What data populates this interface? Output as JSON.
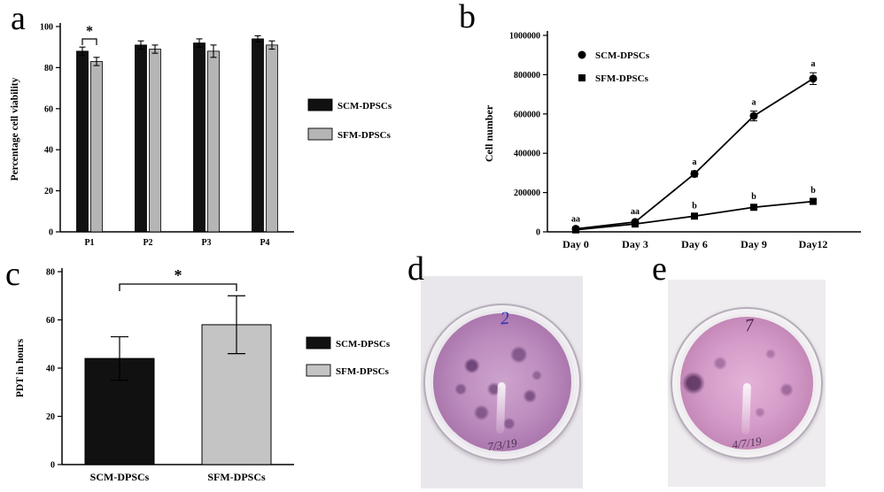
{
  "panels": {
    "a": {
      "label": "a"
    },
    "b": {
      "label": "b"
    },
    "c": {
      "label": "c"
    },
    "d": {
      "label": "d"
    },
    "e": {
      "label": "e"
    }
  },
  "colors": {
    "scm": "#111111",
    "sfm_a": "#b5b5b5",
    "sfm_c": "#c4c4c4"
  },
  "chart_data": [
    {
      "id": "cell-viability",
      "type": "bar",
      "panel": "a",
      "ylabel": "Percentage cell viability",
      "ylim": [
        0,
        100
      ],
      "yticks": [
        0,
        20,
        40,
        60,
        80,
        100
      ],
      "categories": [
        "P1",
        "P2",
        "P3",
        "P4"
      ],
      "series": [
        {
          "name": "SCM-DPSCs",
          "color": "#111111",
          "values": [
            88,
            91,
            92,
            94
          ],
          "errors": [
            2,
            2,
            2,
            1.5
          ]
        },
        {
          "name": "SFM-DPSCs",
          "color": "#b5b5b5",
          "values": [
            83,
            89,
            88,
            91
          ],
          "errors": [
            2,
            2,
            3,
            2
          ]
        }
      ],
      "legend_position": "right",
      "significance": {
        "group": 0,
        "label": "*"
      }
    },
    {
      "id": "cell-growth",
      "type": "line",
      "panel": "b",
      "ylabel": "Cell number",
      "ylim": [
        0,
        1000000
      ],
      "yticks": [
        0,
        200000,
        400000,
        600000,
        800000,
        1000000
      ],
      "categories": [
        "Day 0",
        "Day 3",
        "Day 6",
        "Day 9",
        "Day12"
      ],
      "series": [
        {
          "name": "SCM-DPSCs",
          "marker": "circle",
          "color": "#111111",
          "values": [
            15000,
            50000,
            295000,
            590000,
            780000
          ],
          "errors": [
            5000,
            8000,
            15000,
            25000,
            30000
          ],
          "annotations": [
            "aa",
            "aa",
            "a",
            "a",
            "a"
          ]
        },
        {
          "name": "SFM-DPSCs",
          "marker": "square",
          "color": "#111111",
          "values": [
            10000,
            40000,
            80000,
            125000,
            155000
          ],
          "errors": [
            4000,
            6000,
            8000,
            10000,
            12000
          ],
          "annotations": [
            "",
            "",
            "b",
            "b",
            "b"
          ]
        }
      ],
      "legend_position": "top-left"
    },
    {
      "id": "pdt",
      "type": "bar",
      "panel": "c",
      "ylabel": "PDT in hours",
      "ylim": [
        0,
        80
      ],
      "yticks": [
        0,
        20,
        40,
        60,
        80
      ],
      "categories": [
        "SCM-DPSCs",
        "SFM-DPSCs"
      ],
      "series": [
        {
          "name": "PDT",
          "values": [
            44,
            58
          ],
          "errors": [
            9,
            12
          ],
          "colors": [
            "#111111",
            "#c4c4c4"
          ]
        }
      ],
      "legend": [
        {
          "label": "SCM-DPSCs",
          "color": "#111111"
        },
        {
          "label": "SFM-DPSCs",
          "color": "#c4c4c4"
        }
      ],
      "legend_position": "right",
      "significance": {
        "from": 0,
        "to": 1,
        "label": "*"
      }
    }
  ],
  "photos": {
    "d": {
      "top_mark": "2",
      "date_mark": "7/3/19"
    },
    "e": {
      "top_mark": "7",
      "date_mark": "4/7/19"
    }
  }
}
